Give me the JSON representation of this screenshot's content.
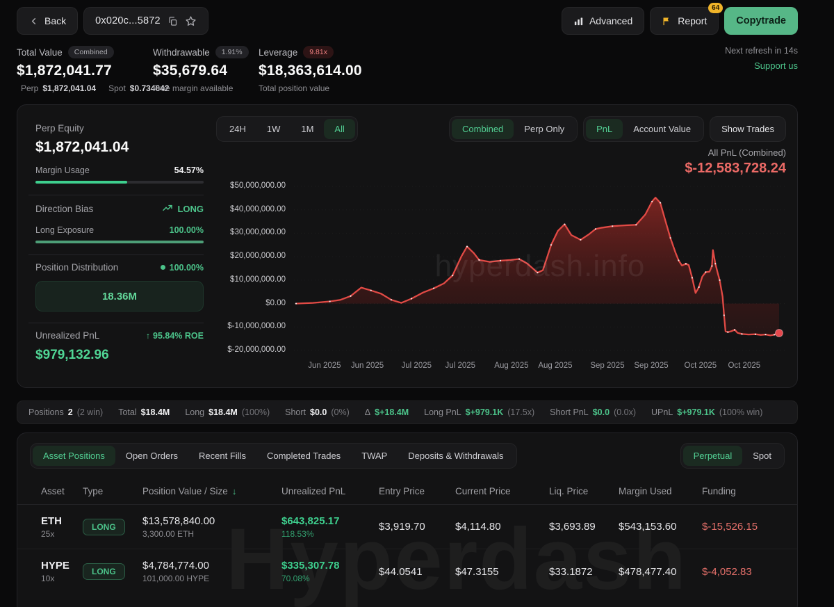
{
  "icons": {
    "sort_desc": "↓",
    "arrow_up": "↑",
    "dot": "●",
    "delta": "Δ"
  },
  "header": {
    "back_label": "Back",
    "address": "0x020c...5872",
    "advanced_label": "Advanced",
    "report_label": "Report",
    "report_badge": "64",
    "copytrade_label": "Copytrade"
  },
  "summary": {
    "total_value": {
      "label": "Total Value",
      "badge": "Combined",
      "value": "$1,872,041.77",
      "perp_label": "Perp",
      "perp_value": "$1,872,041.04",
      "spot_label": "Spot",
      "spot_value": "$0.734642"
    },
    "withdrawable": {
      "label": "Withdrawable",
      "badge": "1.91%",
      "value": "$35,679.64",
      "sub": "Free margin available"
    },
    "leverage": {
      "label": "Leverage",
      "badge": "9.81x",
      "value": "$18,363,614.00",
      "sub": "Total position value"
    },
    "refresh": "Next refresh in 14s",
    "support": "Support us"
  },
  "panel": {
    "perp_equity_label": "Perp Equity",
    "perp_equity_value": "$1,872,041.04",
    "margin_usage_label": "Margin Usage",
    "margin_usage_value": "54.57%",
    "margin_usage_pct": 54.57,
    "direction_bias_label": "Direction Bias",
    "direction_bias_value": "LONG",
    "long_exposure_label": "Long Exposure",
    "long_exposure_value": "100.00%",
    "long_exposure_pct": 100,
    "position_distribution_label": "Position Distribution",
    "position_distribution_value": "100.00%",
    "distribution_total": "18.36M",
    "unrealized_pnl_label": "Unrealized PnL",
    "roe_value": "95.84% ROE",
    "unrealized_pnl_value": "$979,132.96"
  },
  "chart_controls": {
    "ranges": [
      "24H",
      "1W",
      "1M",
      "All"
    ],
    "range_active": "All",
    "modes": [
      "Combined",
      "Perp Only"
    ],
    "mode_active": "Combined",
    "views": [
      "PnL",
      "Account Value"
    ],
    "view_active": "PnL",
    "show_trades": "Show Trades",
    "pnl_label": "All PnL (Combined)",
    "pnl_value": "$-12,583,728.24"
  },
  "chart_data": {
    "type": "area",
    "title": "All PnL (Combined)",
    "ylim": [
      -20000000,
      50000000
    ],
    "y_ticks": [
      "$50,000,000.00",
      "$40,000,000.00",
      "$30,000,000.00",
      "$20,000,000.00",
      "$10,000,000.00",
      "$0.00",
      "$-10,000,000.00",
      "$-20,000,000.00"
    ],
    "x_ticks": [
      "Jun 2025",
      "Jun 2025",
      "Jul 2025",
      "Jul 2025",
      "Aug 2025",
      "Aug 2025",
      "Sep 2025",
      "Sep 2025",
      "Oct 2025",
      "Oct 2025"
    ],
    "x_tick_positions": [
      0.062,
      0.149,
      0.249,
      0.338,
      0.442,
      0.531,
      0.637,
      0.726,
      0.826,
      0.915
    ],
    "grid": false,
    "legend": false,
    "watermark": "hyperdash.info",
    "final_value": -12583728.24,
    "series": [
      {
        "name": "All PnL (Combined)",
        "color": "#e14a45",
        "unit": "millions USD",
        "points": [
          [
            0.0,
            0.0
          ],
          [
            0.035,
            0.3
          ],
          [
            0.07,
            0.9
          ],
          [
            0.092,
            1.6
          ],
          [
            0.113,
            3.2
          ],
          [
            0.135,
            6.8
          ],
          [
            0.155,
            5.6
          ],
          [
            0.176,
            4.2
          ],
          [
            0.197,
            1.6
          ],
          [
            0.218,
            0.3
          ],
          [
            0.239,
            2.1
          ],
          [
            0.263,
            4.7
          ],
          [
            0.285,
            6.5
          ],
          [
            0.306,
            8.6
          ],
          [
            0.324,
            12.0
          ],
          [
            0.342,
            20.0
          ],
          [
            0.354,
            24.3
          ],
          [
            0.368,
            21.5
          ],
          [
            0.379,
            18.6
          ],
          [
            0.401,
            17.8
          ],
          [
            0.423,
            18.3
          ],
          [
            0.444,
            18.6
          ],
          [
            0.462,
            19.0
          ],
          [
            0.479,
            17.0
          ],
          [
            0.5,
            13.2
          ],
          [
            0.511,
            14.2
          ],
          [
            0.528,
            25.0
          ],
          [
            0.542,
            31.0
          ],
          [
            0.556,
            33.8
          ],
          [
            0.57,
            29.2
          ],
          [
            0.589,
            27.2
          ],
          [
            0.606,
            29.5
          ],
          [
            0.62,
            31.8
          ],
          [
            0.631,
            32.3
          ],
          [
            0.655,
            33.0
          ],
          [
            0.683,
            33.4
          ],
          [
            0.704,
            33.6
          ],
          [
            0.723,
            38.0
          ],
          [
            0.737,
            43.5
          ],
          [
            0.744,
            45.2
          ],
          [
            0.754,
            43.0
          ],
          [
            0.765,
            35.0
          ],
          [
            0.775,
            28.0
          ],
          [
            0.785,
            22.0
          ],
          [
            0.792,
            18.4
          ],
          [
            0.799,
            16.2
          ],
          [
            0.807,
            17.0
          ],
          [
            0.813,
            16.4
          ],
          [
            0.82,
            11.0
          ],
          [
            0.827,
            4.5
          ],
          [
            0.834,
            7.0
          ],
          [
            0.841,
            11.5
          ],
          [
            0.848,
            13.4
          ],
          [
            0.856,
            13.6
          ],
          [
            0.861,
            16.0
          ],
          [
            0.863,
            22.8
          ],
          [
            0.868,
            17.0
          ],
          [
            0.873,
            13.0
          ],
          [
            0.877,
            10.0
          ],
          [
            0.883,
            3.0
          ],
          [
            0.886,
            -5.0
          ],
          [
            0.889,
            -11.8
          ],
          [
            0.894,
            -12.2
          ],
          [
            0.901,
            -11.8
          ],
          [
            0.908,
            -11.2
          ],
          [
            0.914,
            -12.5
          ],
          [
            0.923,
            -13.0
          ],
          [
            0.937,
            -13.2
          ],
          [
            0.951,
            -13.1
          ],
          [
            0.962,
            -13.4
          ],
          [
            0.972,
            -13.2
          ],
          [
            0.982,
            -13.6
          ],
          [
            0.99,
            -13.3
          ],
          [
            1.0,
            -12.58
          ]
        ]
      }
    ]
  },
  "positions_bar": {
    "items": [
      {
        "label": "Positions",
        "value": "2",
        "sub": "(2 win)"
      },
      {
        "label": "Total",
        "value": "$18.4M",
        "sub": ""
      },
      {
        "label": "Long",
        "value": "$18.4M",
        "sub": "(100%)"
      },
      {
        "label": "Short",
        "value": "$0.0",
        "sub": "(0%)"
      },
      {
        "label": "Δ",
        "value": "$+18.4M",
        "sub": ""
      },
      {
        "label": "Long PnL",
        "value": "$+979.1K",
        "sub": "(17.5x)"
      },
      {
        "label": "Short PnL",
        "value": "$0.0",
        "sub": "(0.0x)"
      },
      {
        "label": "UPnL",
        "value": "$+979.1K",
        "sub": "(100% win)"
      }
    ]
  },
  "tabs": {
    "items": [
      "Asset Positions",
      "Open Orders",
      "Recent Fills",
      "Completed Trades",
      "TWAP",
      "Deposits & Withdrawals"
    ],
    "active": "Asset Positions",
    "market": [
      "Perpetual",
      "Spot"
    ],
    "market_active": "Perpetual"
  },
  "table": {
    "columns": [
      "Asset",
      "Type",
      "Position Value / Size",
      "Unrealized PnL",
      "Entry Price",
      "Current Price",
      "Liq. Price",
      "Margin Used",
      "Funding"
    ],
    "sort_column": "Position Value / Size",
    "rows": [
      {
        "asset": "ETH",
        "leverage": "25x",
        "type": "LONG",
        "value": "$13,578,840.00",
        "size": "3,300.00 ETH",
        "upnl": "$643,825.17",
        "upnl_pct": "118.53%",
        "entry": "$3,919.70",
        "current": "$4,114.80",
        "liq": "$3,693.89",
        "margin": "$543,153.60",
        "funding": "$-15,526.15"
      },
      {
        "asset": "HYPE",
        "leverage": "10x",
        "type": "LONG",
        "value": "$4,784,774.00",
        "size": "101,000.00 HYPE",
        "upnl": "$335,307.78",
        "upnl_pct": "70.08%",
        "entry": "$44.0541",
        "current": "$47.3155",
        "liq": "$33.1872",
        "margin": "$478,477.40",
        "funding": "$-4,052.83"
      }
    ]
  },
  "watermark_bottom": "Hyperdash"
}
